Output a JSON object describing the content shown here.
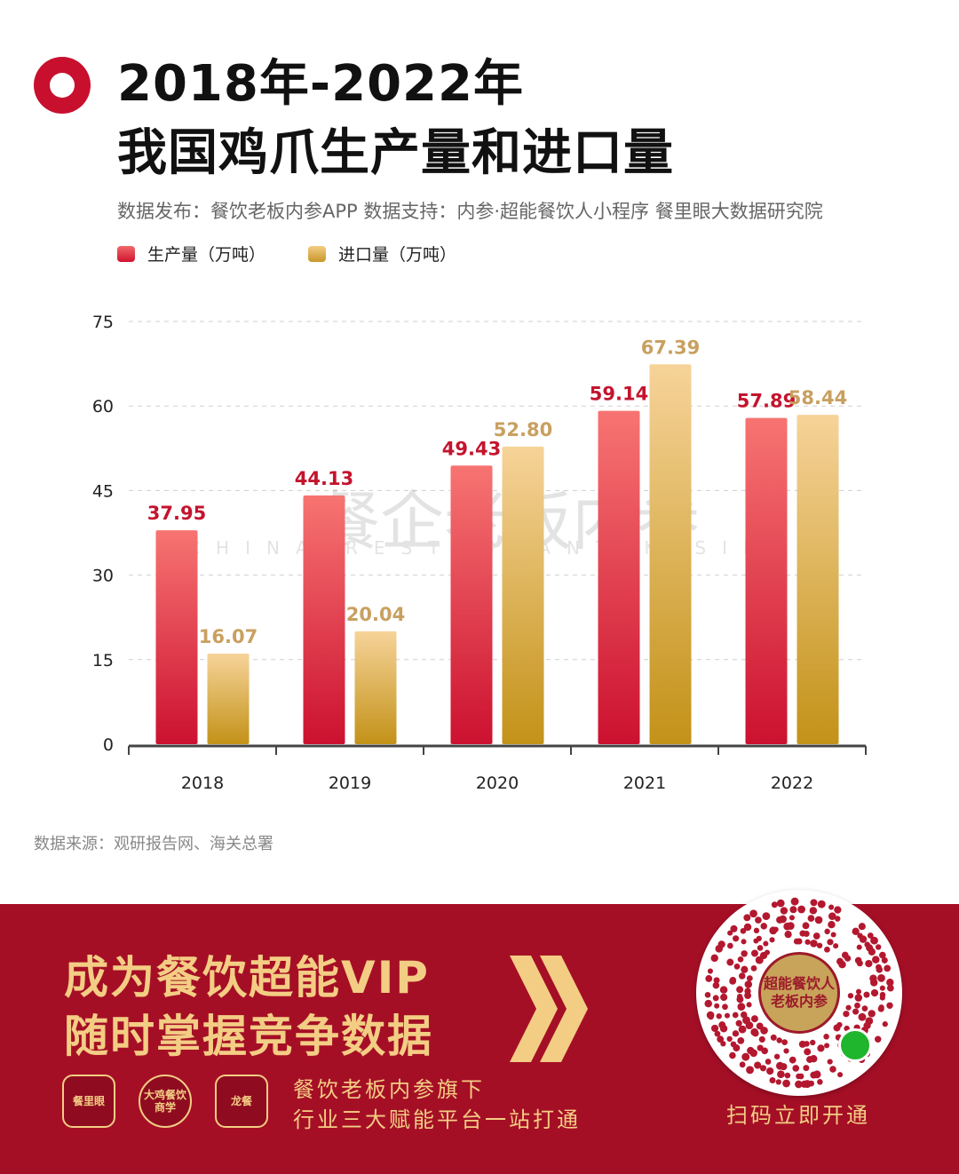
{
  "header": {
    "title_line1": "2018年-2022年",
    "title_line2": "我国鸡爪生产量和进口量",
    "subtitle": "数据发布：餐饮老板内参APP  数据支持：内参·超能餐饮人小程序   餐里眼大数据研究院"
  },
  "watermark": {
    "main": "餐企老板内参",
    "sub": "CHINA RESTAURANT INSIDER"
  },
  "chart_data": {
    "type": "bar",
    "categories": [
      "2018",
      "2019",
      "2020",
      "2021",
      "2022"
    ],
    "series": [
      {
        "name": "生产量（万吨）",
        "values": [
          37.95,
          44.13,
          49.43,
          59.14,
          57.89
        ],
        "labels": [
          "37.95",
          "44.13",
          "49.43",
          "59.14",
          "57.89"
        ],
        "color": "#d0132f",
        "label_color": "#c4142e"
      },
      {
        "name": "进口量（万吨）",
        "values": [
          16.07,
          20.04,
          52.8,
          67.39,
          58.44
        ],
        "labels": [
          "16.07",
          "20.04",
          "52.80",
          "67.39",
          "58.44"
        ],
        "color": "#c8962a",
        "label_color": "#c8a060"
      }
    ],
    "yticks": [
      "0",
      "15",
      "30",
      "45",
      "60",
      "75"
    ],
    "ylim": [
      0,
      75
    ],
    "grid": true,
    "legend_position": "top-left"
  },
  "source": "数据来源：观研报告网、海关总署",
  "banner": {
    "title_line1": "成为餐饮超能VIP",
    "title_line2": "随时掌握竞争数据",
    "platforms": [
      "餐里眼",
      "大鸡餐饮商学",
      "龙餐"
    ],
    "platform_line1": "餐饮老板内参旗下",
    "platform_line2": "行业三大赋能平台一站打通",
    "qr_center": "超能餐饮人 老板内参",
    "qr_caption": "扫码立即开通",
    "accent": "#a50f26",
    "gold": "#f3cd84"
  }
}
